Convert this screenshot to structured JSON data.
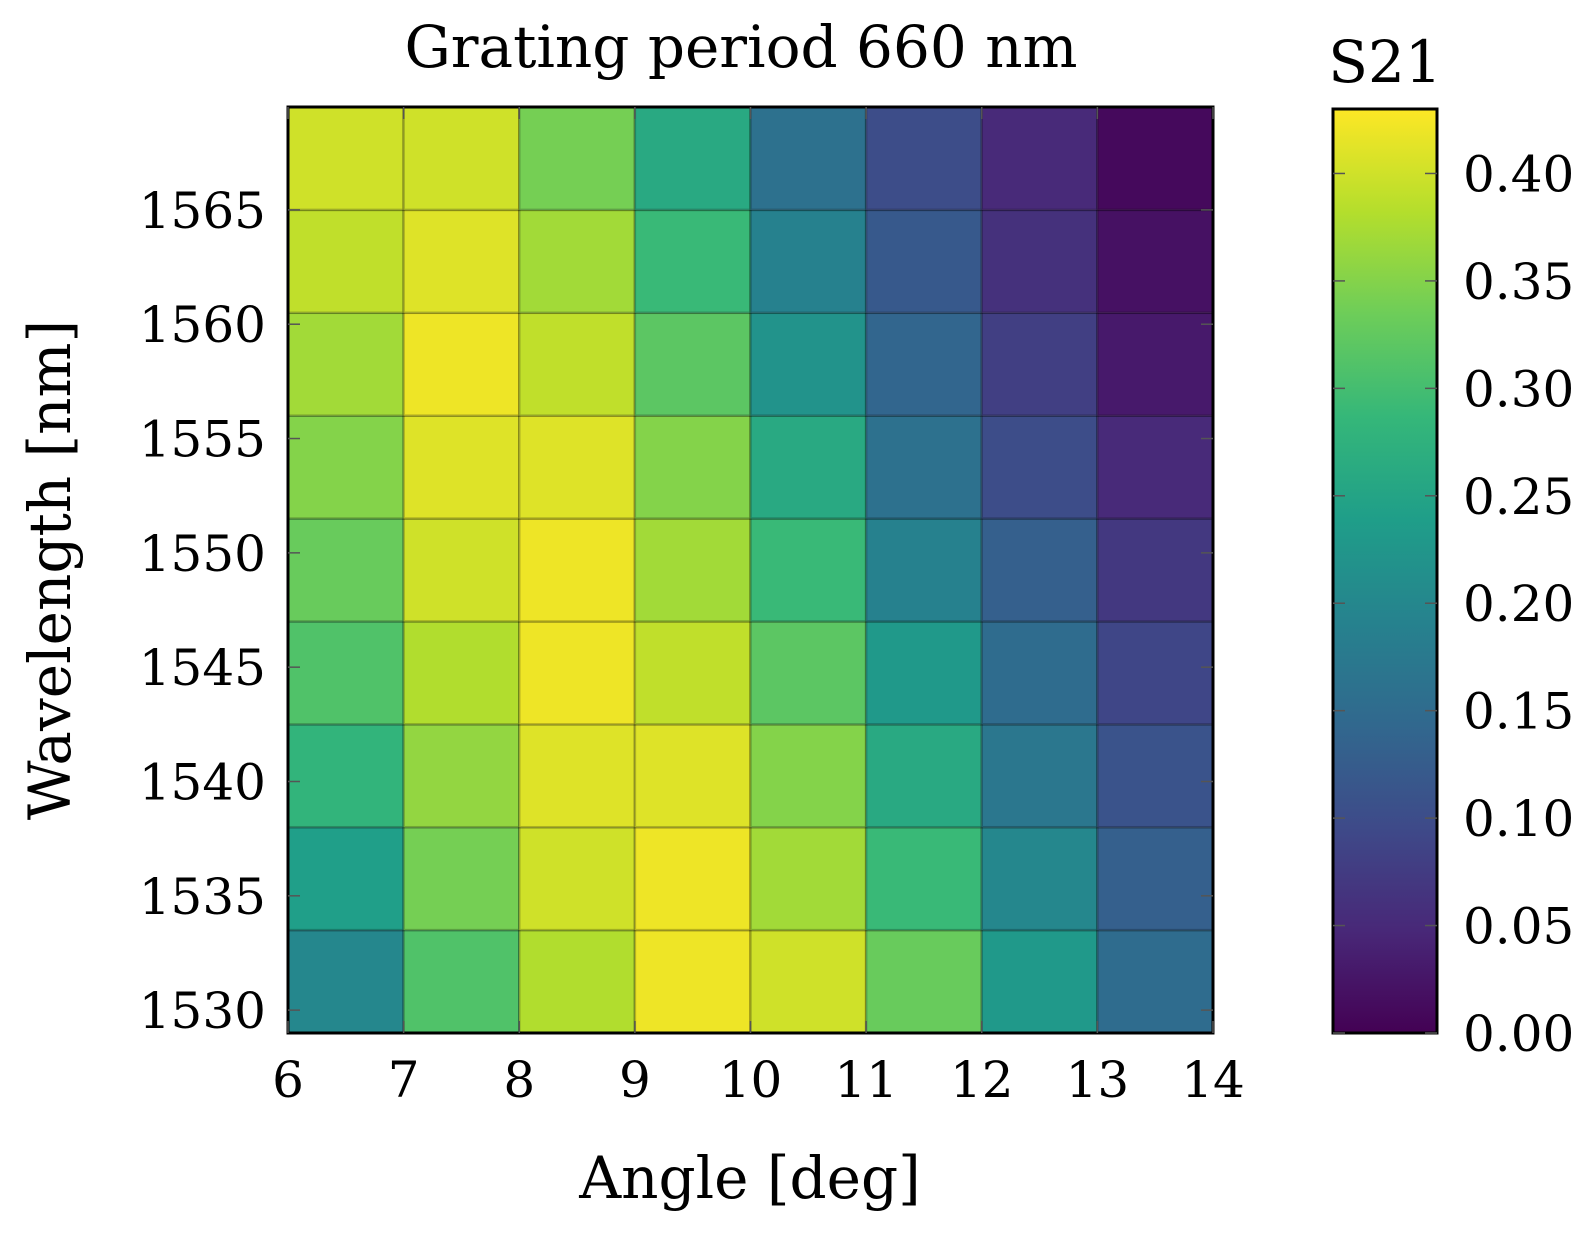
{
  "chart_data": {
    "type": "heatmap",
    "title": "Grating period 660 nm",
    "xlabel": "Angle [deg]",
    "ylabel": "Wavelength [nm]",
    "x_edges": [
      6,
      7,
      8,
      9,
      10,
      11,
      12,
      13,
      14
    ],
    "y_edges": [
      1529,
      1533.5,
      1538,
      1542.5,
      1547,
      1551.5,
      1556,
      1560.5,
      1565,
      1569.5
    ],
    "xlim": [
      6,
      14
    ],
    "ylim": [
      1529,
      1569.5
    ],
    "xticks": [
      6,
      7,
      8,
      9,
      10,
      11,
      12,
      13,
      14
    ],
    "yticks": [
      1530,
      1535,
      1540,
      1545,
      1550,
      1555,
      1560,
      1565
    ],
    "grid": false,
    "colorbar": {
      "label": "S21",
      "range": [
        0,
        0.43
      ],
      "ticks": [
        "0.00",
        "0.05",
        "0.10",
        "0.15",
        "0.20",
        "0.25",
        "0.30",
        "0.35",
        "0.40"
      ],
      "colormap": "viridis"
    },
    "z": [
      [
        0.2,
        0.31,
        0.38,
        0.42,
        0.4,
        0.33,
        0.23,
        0.15
      ],
      [
        0.24,
        0.34,
        0.4,
        0.42,
        0.37,
        0.29,
        0.2,
        0.13
      ],
      [
        0.28,
        0.36,
        0.41,
        0.41,
        0.35,
        0.26,
        0.17,
        0.11
      ],
      [
        0.31,
        0.38,
        0.42,
        0.39,
        0.32,
        0.23,
        0.15,
        0.09
      ],
      [
        0.33,
        0.4,
        0.42,
        0.37,
        0.29,
        0.19,
        0.13,
        0.07
      ],
      [
        0.35,
        0.41,
        0.41,
        0.35,
        0.26,
        0.16,
        0.1,
        0.05
      ],
      [
        0.37,
        0.42,
        0.39,
        0.32,
        0.22,
        0.14,
        0.08,
        0.03
      ],
      [
        0.39,
        0.41,
        0.37,
        0.29,
        0.19,
        0.12,
        0.06,
        0.02
      ],
      [
        0.4,
        0.4,
        0.34,
        0.26,
        0.16,
        0.1,
        0.05,
        0.01
      ]
    ]
  }
}
